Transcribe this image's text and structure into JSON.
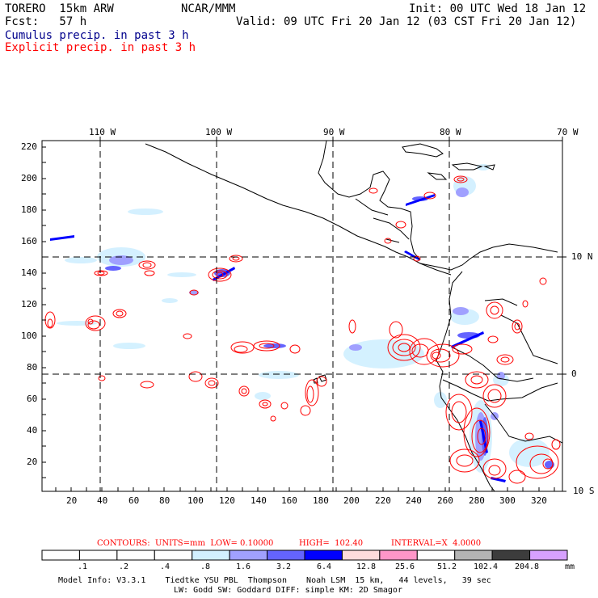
{
  "header": {
    "model": "TORERO  15km ARW",
    "org": "NCAR/MMM",
    "init": "Init: 00 UTC Wed 18 Jan 12",
    "fcst": "Fcst:   57 h",
    "valid": "Valid: 09 UTC Fri 20 Jan 12 (03 CST Fri 20 Jan 12)",
    "field1": "Cumulus precip. in past 3 h",
    "field2": "Explicit precip. in past 3 h"
  },
  "colors": {
    "field1": "#00008c",
    "field2": "#ff0000",
    "contour": "#ff0000",
    "coast": "#000000"
  },
  "map": {
    "lon_labels": [
      "110 W",
      "100 W",
      "90 W",
      "80 W",
      "70 W"
    ],
    "lat_labels": [
      "10 N",
      "0",
      "10 S"
    ],
    "y_ticks": [
      "220",
      "200",
      "180",
      "160",
      "140",
      "120",
      "100",
      "80",
      "60",
      "40",
      "20"
    ],
    "x_ticks": [
      "20",
      "40",
      "60",
      "80",
      "100",
      "120",
      "140",
      "160",
      "180",
      "200",
      "220",
      "240",
      "260",
      "280",
      "300",
      "320"
    ]
  },
  "contours_info": {
    "units": "CONTOURS:  UNITS=mm  LOW= 0.10000",
    "high": "HIGH=  102.40",
    "interval": "INTERVAL=X  4.0000"
  },
  "colorbar": {
    "colors": [
      "#ffffff",
      "#ffffff",
      "#ffffff",
      "#ffffff",
      "#d2f0ff",
      "#a0a0ff",
      "#6464ff",
      "#0000ff",
      "#ffdcdc",
      "#ff96c8",
      "#ffffff",
      "#b4b4b4",
      "#3c3c3c",
      "#d7a0ff"
    ],
    "labels": [
      ".1",
      ".2",
      ".4",
      ".8",
      "1.6",
      "3.2",
      "6.4",
      "12.8",
      "25.6",
      "51.2",
      "102.4",
      "204.8"
    ],
    "unit": "mm"
  },
  "footer": {
    "line1": "Model Info: V3.3.1    Tiedtke YSU PBL  Thompson    Noah LSM  15 km,   44 levels,   39 sec",
    "line2": "LW: Godd SW: Goddard DIFF: simple KM: 2D Smagor"
  }
}
